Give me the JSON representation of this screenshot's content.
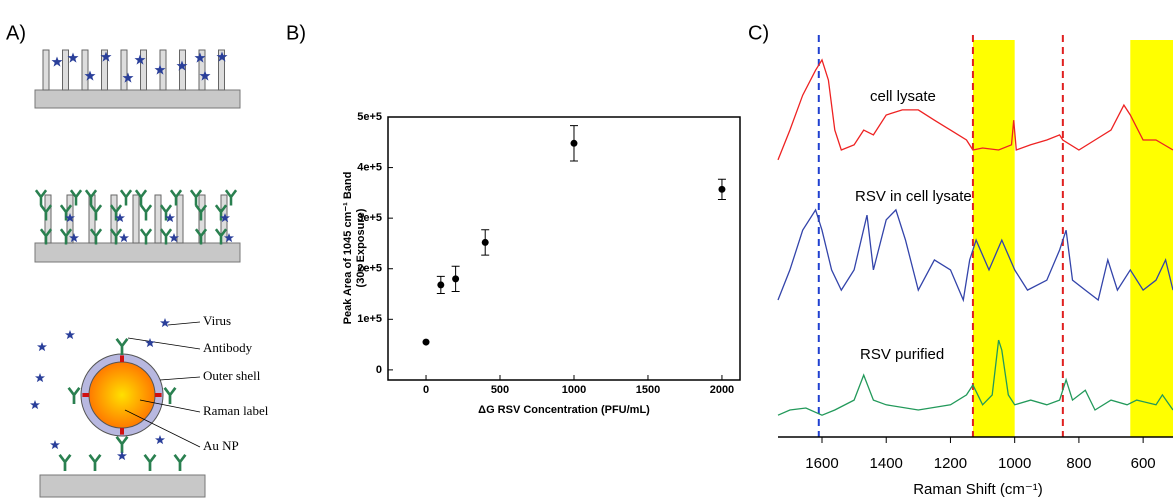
{
  "panel_labels": [
    "A)",
    "B)",
    "C)"
  ],
  "panel_a": {
    "labels": [
      "Virus",
      "Antibody",
      "Outer shell",
      "Raman label",
      "Au NP"
    ]
  },
  "chart_data": [
    {
      "type": "scatter",
      "x_label": "ΔG RSV Concentration (PFU/mL)",
      "y_label": [
        "Peak Area of 1045 cm⁻¹ Band",
        "(30s Exposure)"
      ],
      "x": [
        0,
        100,
        200,
        400,
        1000,
        2000
      ],
      "values": [
        55000,
        168000,
        180000,
        252000,
        448000,
        357000
      ],
      "errors": [
        0,
        17000,
        25000,
        25000,
        35000,
        20000
      ],
      "color": "#000000",
      "xlim": [
        -257,
        2122
      ],
      "ylim": [
        -20000,
        500000
      ],
      "xticks": [
        0,
        500,
        1000,
        1500,
        2000
      ],
      "yticks": [
        0,
        {
          "value": 100000,
          "label": "1e+5"
        },
        {
          "value": 200000,
          "label": "2e+5"
        },
        {
          "value": 300000,
          "label": "3e+5"
        },
        {
          "value": 400000,
          "label": "4e+5"
        },
        {
          "value": 500000,
          "label": "5e+5"
        }
      ]
    },
    {
      "type": "line",
      "x_label": "Raman Shift (cm⁻¹)",
      "xlim": [
        1737,
        507
      ],
      "ylim": [
        0,
        100
      ],
      "xticks": [
        1600,
        1400,
        1200,
        1000,
        800,
        600
      ],
      "highlight_bands": [
        {
          "range": [
            1130,
            1000
          ],
          "color": "#ffff00"
        },
        {
          "range": [
            640,
            507
          ],
          "color": "#ffff00"
        }
      ],
      "reference_lines": [
        {
          "x": 1610,
          "color": "#2040d0"
        },
        {
          "x": 1130,
          "color": "#e02020"
        },
        {
          "x": 850,
          "color": "#e02020"
        }
      ],
      "series": [
        {
          "name": "cell lysate",
          "color": "#ee2222",
          "x": [
            1737,
            1700,
            1660,
            1620,
            1600,
            1580,
            1560,
            1540,
            1500,
            1470,
            1440,
            1400,
            1350,
            1300,
            1250,
            1200,
            1150,
            1130,
            1100,
            1050,
            1010,
            1003,
            995,
            950,
            900,
            860,
            850,
            800,
            750,
            700,
            660,
            640,
            600,
            560,
            507
          ],
          "values": [
            69.8,
            77.3,
            86.1,
            92.4,
            95.0,
            89.9,
            77.3,
            72.3,
            73.6,
            77.3,
            76.1,
            81.1,
            82.4,
            82.4,
            79.8,
            77.3,
            74.8,
            72.3,
            72.8,
            72.3,
            73.6,
            79.8,
            72.3,
            73.6,
            74.8,
            76.1,
            74.8,
            72.3,
            74.8,
            77.3,
            83.6,
            81.1,
            74.8,
            74.8,
            72.3
          ]
        },
        {
          "name": "RSV in cell lysate",
          "color": "#3344aa",
          "x": [
            1737,
            1700,
            1660,
            1620,
            1600,
            1570,
            1540,
            1500,
            1460,
            1440,
            1400,
            1370,
            1340,
            1300,
            1250,
            1200,
            1160,
            1140,
            1120,
            1080,
            1040,
            1000,
            960,
            900,
            860,
            840,
            820,
            780,
            740,
            710,
            680,
            640,
            600,
            560,
            530,
            507
          ],
          "values": [
            34.5,
            42.1,
            52.1,
            57.2,
            52.1,
            42.1,
            37.0,
            42.1,
            55.9,
            42.1,
            54.7,
            57.2,
            49.6,
            37.0,
            44.6,
            42.1,
            34.5,
            44.6,
            49.6,
            42.1,
            49.6,
            42.1,
            37.0,
            39.5,
            47.1,
            52.1,
            39.5,
            37.0,
            34.5,
            44.6,
            37.0,
            42.1,
            37.0,
            39.5,
            44.6,
            37.0
          ]
        },
        {
          "name": "RSV purified",
          "color": "#22995a",
          "x": [
            1737,
            1700,
            1650,
            1600,
            1560,
            1500,
            1470,
            1440,
            1400,
            1300,
            1200,
            1150,
            1130,
            1100,
            1070,
            1050,
            1040,
            1020,
            1000,
            950,
            900,
            860,
            840,
            820,
            780,
            750,
            700,
            650,
            620,
            560,
            540,
            507
          ],
          "values": [
            5.5,
            6.8,
            7.3,
            5.5,
            6.8,
            9.3,
            15.6,
            9.3,
            8.1,
            6.8,
            8.1,
            10.6,
            13.1,
            8.1,
            10.6,
            24.4,
            21.9,
            10.6,
            8.1,
            9.3,
            8.1,
            9.3,
            14.4,
            9.3,
            11.8,
            6.8,
            9.3,
            8.1,
            9.3,
            8.1,
            10.6,
            6.8
          ]
        }
      ]
    }
  ]
}
